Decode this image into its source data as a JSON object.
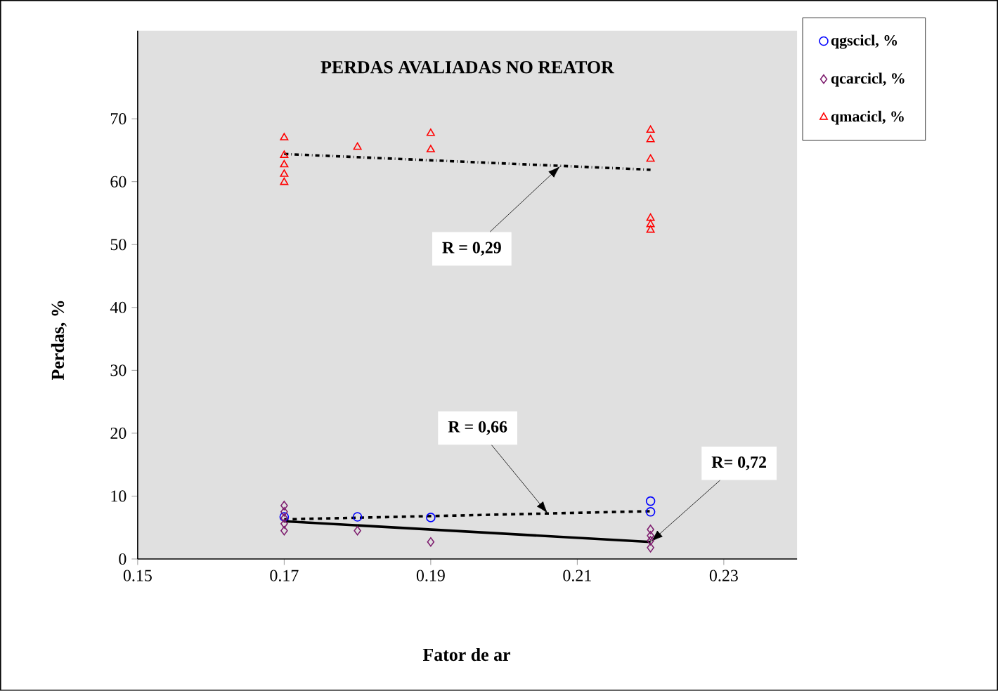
{
  "chart_data": {
    "type": "scatter",
    "title": "PERDAS AVALIADAS NO REATOR",
    "xlabel": "Fator de ar",
    "ylabel": "Perdas, %",
    "xlim": [
      0.15,
      0.24
    ],
    "xticks": [
      0.15,
      0.17,
      0.19,
      0.21,
      0.23
    ],
    "ylim": [
      0,
      84
    ],
    "yticks": [
      0,
      10,
      20,
      30,
      40,
      50,
      60,
      70
    ],
    "grid": false,
    "legend": "top right",
    "series": [
      {
        "name": "qgscicl, %",
        "color": "#0000ff",
        "marker": "circle",
        "x": [
          0.17,
          0.18,
          0.19,
          0.22,
          0.22
        ],
        "values": [
          6.7,
          6.7,
          6.6,
          9.2,
          7.5
        ]
      },
      {
        "name": "qcarcicl, %",
        "color": "#7f1f6f",
        "marker": "diamond",
        "x": [
          0.17,
          0.17,
          0.17,
          0.17,
          0.17,
          0.18,
          0.19,
          0.22,
          0.22,
          0.22,
          0.22
        ],
        "values": [
          8.5,
          7.5,
          6.5,
          5.6,
          4.5,
          4.5,
          2.7,
          4.7,
          3.7,
          2.9,
          1.8
        ]
      },
      {
        "name": "qmacicl, %",
        "color": "#ff0000",
        "marker": "triangle",
        "x": [
          0.17,
          0.17,
          0.17,
          0.17,
          0.17,
          0.18,
          0.19,
          0.19,
          0.22,
          0.22,
          0.22,
          0.22,
          0.22,
          0.22
        ],
        "values": [
          67,
          64.2,
          62.7,
          61.2,
          59.9,
          65.5,
          67.7,
          65.1,
          68.2,
          66.7,
          63.6,
          54.2,
          53.2,
          52.3
        ]
      },
      {
        "type": "line",
        "color": "#000000",
        "line_style": "dotted",
        "marker": "none",
        "x": [
          0.17,
          0.22
        ],
        "values": [
          6.3,
          7.6
        ]
      },
      {
        "type": "line",
        "color": "#000000",
        "line_style": "solid",
        "marker": "none",
        "x": [
          0.17,
          0.22
        ],
        "values": [
          6.0,
          2.7
        ]
      },
      {
        "type": "line",
        "color": "#000000",
        "line_style": "dashed",
        "marker": "none",
        "x": [
          0.17,
          0.22
        ],
        "values": [
          64.4,
          61.9
        ]
      }
    ],
    "annotations": [
      {
        "text": "R = 0,29",
        "x": 0.2077,
        "y": 62.5
      },
      {
        "text": "R = 0,66",
        "x": 0.206,
        "y": 7.2
      },
      {
        "text": "R= 0,72",
        "x": 0.22,
        "y": 2.7
      }
    ]
  }
}
